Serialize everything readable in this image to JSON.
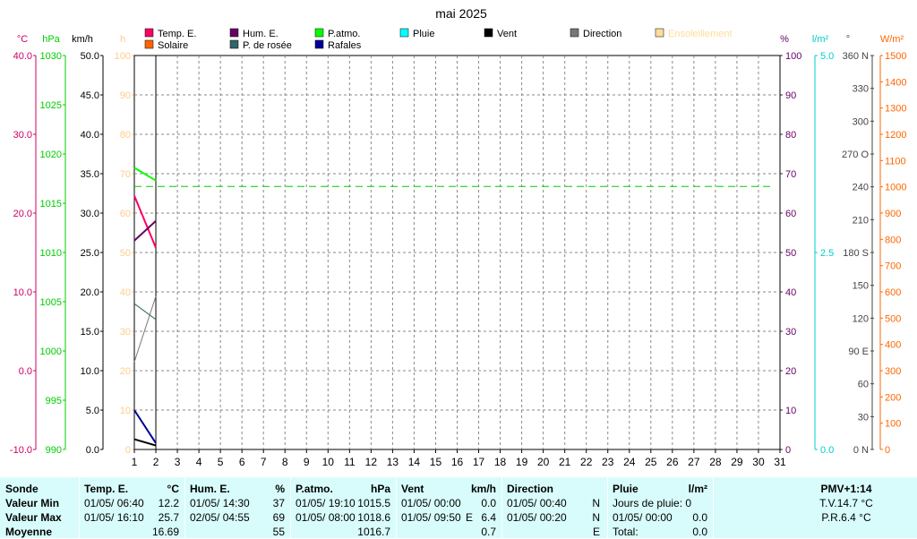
{
  "chart_data": {
    "type": "line",
    "title": "mai 2025",
    "x": {
      "min": 1,
      "max": 31,
      "ticks": [
        1,
        2,
        3,
        4,
        5,
        6,
        7,
        8,
        9,
        10,
        11,
        12,
        13,
        14,
        15,
        16,
        17,
        18,
        19,
        20,
        21,
        22,
        23,
        24,
        25,
        26,
        27,
        28,
        29,
        30,
        31
      ]
    },
    "axes": [
      {
        "unit": "°C",
        "color": "#cc0066",
        "min": -10,
        "max": 40,
        "ticks": [
          "40.0",
          "30.0",
          "20.0",
          "10.0",
          "0.0",
          "-10.0"
        ]
      },
      {
        "unit": "hPa",
        "color": "#00cc00",
        "min": 990,
        "max": 1030,
        "ticks": [
          "1030",
          "1025",
          "1020",
          "1015",
          "1010",
          "1005",
          "1000",
          "995",
          "990"
        ]
      },
      {
        "unit": "km/h",
        "color": "#000000",
        "min": 0,
        "max": 50,
        "ticks": [
          "50.0",
          "45.0",
          "40.0",
          "35.0",
          "30.0",
          "25.0",
          "20.0",
          "15.0",
          "10.0",
          "5.0",
          "0.0"
        ]
      },
      {
        "unit": "h",
        "color": "#ffcc88",
        "min": 0,
        "max": 100,
        "ticks": [
          "100",
          "90",
          "80",
          "70",
          "60",
          "50",
          "40",
          "30",
          "20",
          "10",
          "0"
        ]
      },
      {
        "unit": "%",
        "color": "#660066",
        "min": 0,
        "max": 100,
        "ticks": [
          "100",
          "90",
          "80",
          "70",
          "60",
          "50",
          "40",
          "30",
          "20",
          "10",
          "0"
        ]
      },
      {
        "unit": "l/m²",
        "color": "#00cccc",
        "min": 0,
        "max": 5,
        "ticks": [
          "5.0",
          "2.5",
          "0.0"
        ]
      },
      {
        "unit": "°",
        "color": "#444444",
        "min": 0,
        "max": 360,
        "ticks": [
          "360 N",
          "330",
          "300",
          "270 O",
          "240",
          "210",
          "180 S",
          "150",
          "120",
          "90 E",
          "60",
          "30",
          "0 N"
        ]
      },
      {
        "unit": "W/m²",
        "color": "#ff6600",
        "min": 0,
        "max": 1500,
        "ticks": [
          "1500",
          "1400",
          "1300",
          "1200",
          "1100",
          "1000",
          "900",
          "800",
          "700",
          "600",
          "500",
          "400",
          "300",
          "200",
          "100",
          "0"
        ]
      }
    ],
    "legend": [
      {
        "name": "Temp. E.",
        "color": "#ff0066"
      },
      {
        "name": "Hum. E.",
        "color": "#660066"
      },
      {
        "name": "P.atmo.",
        "color": "#00ff00"
      },
      {
        "name": "Pluie",
        "color": "#00ffff"
      },
      {
        "name": "Vent",
        "color": "#000000"
      },
      {
        "name": "Direction",
        "color": "#777777"
      },
      {
        "name": "Ensoleillement",
        "color": "#ffdd99"
      },
      {
        "name": "Solaire",
        "color": "#ff6600"
      },
      {
        "name": "P. de rosée",
        "color": "#336666"
      },
      {
        "name": "Rafales",
        "color": "#000099"
      }
    ],
    "series": [
      {
        "name": "Temp. E.",
        "axis": 0,
        "color": "#ff0066",
        "x": [
          1,
          2
        ],
        "y": [
          22.2,
          15.6
        ]
      },
      {
        "name": "Hum. E.",
        "axis": 4,
        "color": "#660066",
        "x": [
          1,
          2
        ],
        "y": [
          53,
          58
        ]
      },
      {
        "name": "P.atmo.",
        "axis": 1,
        "color": "#00ff00",
        "x": [
          1,
          2
        ],
        "y": [
          1018.6,
          1017.3
        ]
      },
      {
        "name": "P. de rosée",
        "axis": 0,
        "color": "#336666",
        "x": [
          1,
          2
        ],
        "y": [
          8.5,
          6.5
        ]
      },
      {
        "name": "Rafales",
        "axis": 2,
        "color": "#000099",
        "x": [
          1,
          2
        ],
        "y": [
          5.0,
          0.8
        ]
      },
      {
        "name": "Vent",
        "axis": 2,
        "color": "#000000",
        "x": [
          1,
          2
        ],
        "y": [
          1.3,
          0.5
        ]
      },
      {
        "name": "Direction",
        "axis": 6,
        "color": "#777777",
        "x": [
          1,
          2
        ],
        "y": [
          80,
          140
        ]
      }
    ],
    "reference_line": {
      "axis": 1,
      "value": 1016.7,
      "color": "#00cc00"
    },
    "grid": true
  },
  "stats": {
    "sonde": {
      "header": "Sonde",
      "rows": [
        "Valeur Min",
        "Valeur Max",
        "Moyenne"
      ]
    },
    "temp": {
      "header": "Temp. E.",
      "unit": "°C",
      "min_date": "01/05/  06:40",
      "min_val": "12.2",
      "max_date": "01/05/  16:10",
      "max_val": "25.7",
      "avg": "16.69"
    },
    "hum": {
      "header": "Hum. E.",
      "unit": "%",
      "min_date": "01/05/  14:30",
      "min_val": "37",
      "max_date": "02/05/  04:55",
      "max_val": "69",
      "avg": "55"
    },
    "patmo": {
      "header": "P.atmo.",
      "unit": "hPa",
      "min_date": "01/05/  19:10",
      "min_val": "1015.5",
      "max_date": "01/05/  08:00",
      "max_val": "1018.6",
      "avg": "1016.7"
    },
    "vent": {
      "header": "Vent",
      "unit": "km/h",
      "min_date": "01/05/  00:00",
      "min_val": "0.0",
      "max_date": "01/05/  09:50",
      "max_dir": "E",
      "max_val": "6.4",
      "avg": "0.7"
    },
    "direction": {
      "header": "Direction",
      "min_date": "01/05/  00:40",
      "min_val": "N",
      "max_date": "01/05/  00:20",
      "max_val": "N",
      "avg": "E"
    },
    "pluie": {
      "header": "Pluie",
      "unit": "l/m²",
      "days_label": "Jours de pluie: 0",
      "max_date": "01/05/  00:00",
      "max_val": "0.0",
      "total_label": "Total:",
      "total_val": "0.0"
    },
    "pmv": {
      "header": "PMV+1:14",
      "tv": "T.V.14.7 °C",
      "pr": "P.R.6.4 °C"
    }
  }
}
